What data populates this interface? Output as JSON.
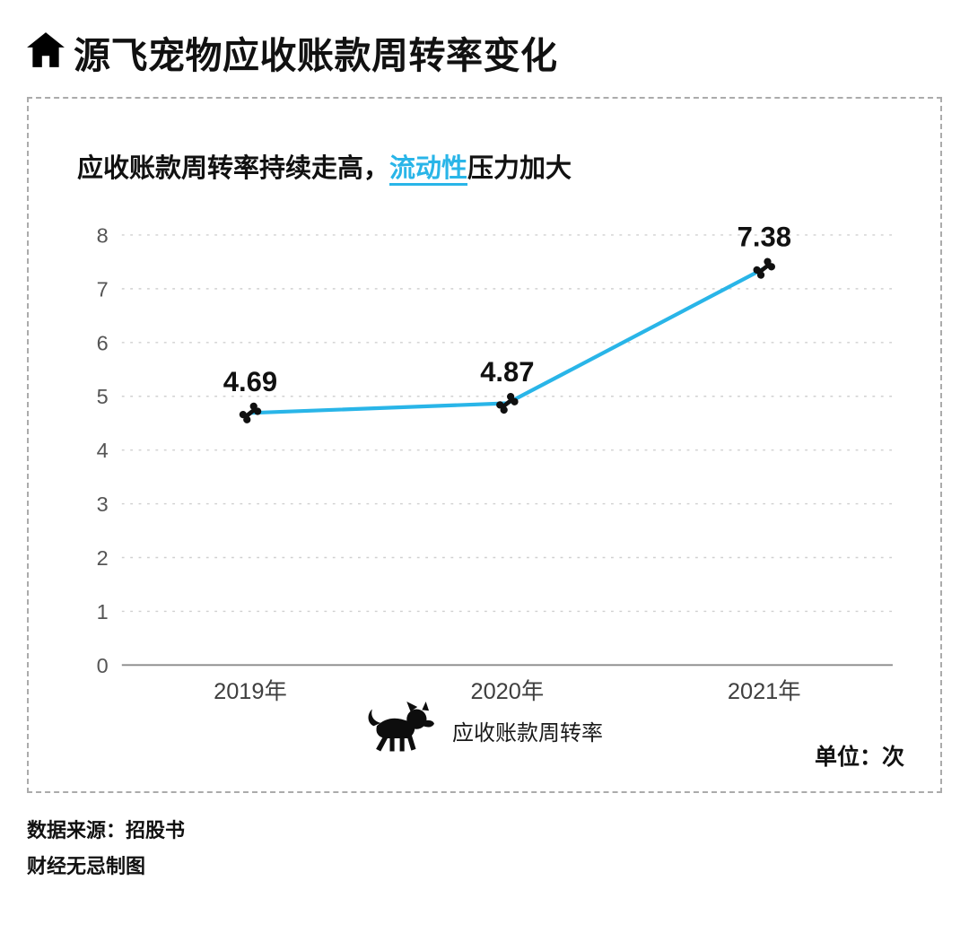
{
  "page": {
    "title": "源飞宠物应收账款周转率变化",
    "unit_label": "单位：次",
    "source_line": "数据来源：招股书",
    "credit_line": "财经无忌制图"
  },
  "subtitle": {
    "pre": "应收账款周转率持续走高，",
    "highlight": "流动性",
    "post": "压力加大"
  },
  "legend": {
    "label": "应收账款周转率"
  },
  "icons": {
    "home": "house-icon",
    "dog": "dog-icon",
    "marker": "bone-icon"
  },
  "colors": {
    "accent": "#29b5e8",
    "marker": "#101010",
    "grid": "#d0d0d0",
    "axis": "#8a8a8a",
    "card_border": "#ababab"
  },
  "chart_data": {
    "type": "line",
    "title": "应收账款周转率持续走高，流动性压力加大",
    "categories": [
      "2019年",
      "2020年",
      "2021年"
    ],
    "series": [
      {
        "name": "应收账款周转率",
        "values": [
          4.69,
          4.87,
          7.38
        ]
      }
    ],
    "ylim": [
      0,
      8
    ],
    "yticks": [
      0,
      1,
      2,
      3,
      4,
      5,
      6,
      7,
      8
    ],
    "xlabel": "",
    "ylabel": "",
    "unit": "次",
    "grid": "horizontal-dashed",
    "legend_position": "bottom-center",
    "marker": "bone",
    "line_color": "#29b5e8"
  }
}
